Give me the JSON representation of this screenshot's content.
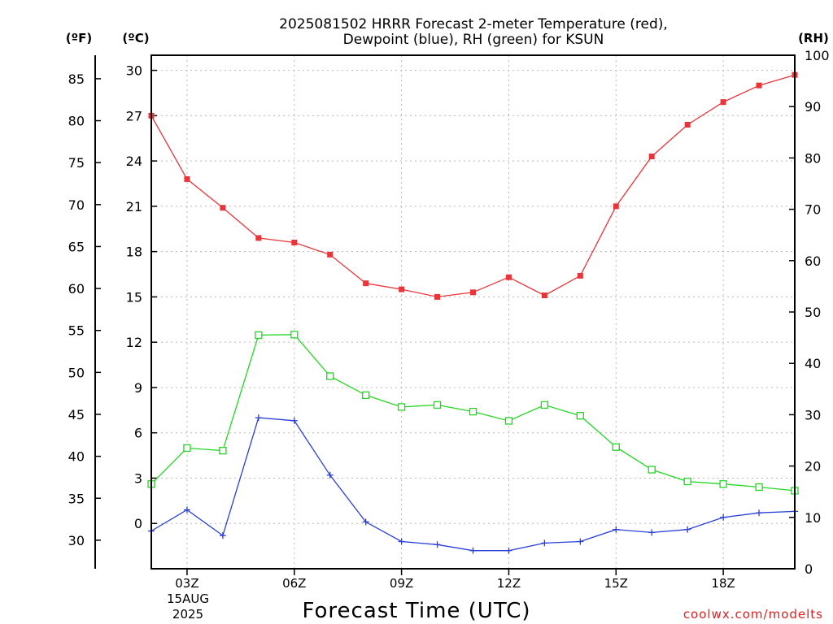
{
  "chart_data": {
    "type": "line",
    "title_line1": "2025081502 HRRR Forecast 2-meter Temperature (red),",
    "title_line2": "Dewpoint (blue), RH (green) for KSUN",
    "xlabel": "Forecast Time (UTC)",
    "credit": "coolwx.com/modelts",
    "left_outer_unit": "(ºF)",
    "left_inner_unit": "(ºC)",
    "right_unit": "(RH)",
    "x_tick_labels": [
      "03Z",
      "06Z",
      "09Z",
      "12Z",
      "15Z",
      "18Z"
    ],
    "x_tick_hours": [
      3,
      6,
      9,
      12,
      15,
      18
    ],
    "x_date_line1": "15AUG",
    "x_date_line2": "2025",
    "xlim_hours": [
      2,
      20
    ],
    "ylim_celsius": [
      -3,
      31
    ],
    "yticks_celsius": [
      0,
      3,
      6,
      9,
      12,
      15,
      18,
      21,
      24,
      27,
      30
    ],
    "yticks_fahrenheit": [
      30,
      35,
      40,
      45,
      50,
      55,
      60,
      65,
      70,
      75,
      80,
      85
    ],
    "ylim_rh": [
      0,
      100
    ],
    "yticks_rh": [
      0,
      10,
      20,
      30,
      40,
      50,
      60,
      70,
      80,
      90,
      100
    ],
    "grid": true,
    "hours": [
      2,
      3,
      4,
      5,
      6,
      7,
      8,
      9,
      10,
      11,
      12,
      13,
      14,
      15,
      16,
      17,
      18,
      19,
      20
    ],
    "series": [
      {
        "name": "2-meter Temperature",
        "axis": "celsius",
        "color": "#e8353a",
        "marker": "filled-square",
        "values": [
          27.0,
          22.8,
          20.9,
          18.9,
          18.6,
          17.8,
          15.9,
          15.5,
          15.0,
          15.3,
          16.3,
          15.1,
          16.4,
          21.0,
          24.3,
          26.4,
          27.9,
          29.0,
          29.7
        ]
      },
      {
        "name": "Dewpoint",
        "axis": "celsius",
        "color": "#2a3fd8",
        "marker": "plus",
        "values": [
          -0.5,
          0.9,
          -0.8,
          7.0,
          6.8,
          3.2,
          0.1,
          -1.2,
          -1.4,
          -1.8,
          -1.8,
          -1.3,
          -1.2,
          -0.4,
          -0.6,
          -0.4,
          0.4,
          0.7,
          0.8
        ]
      },
      {
        "name": "RH",
        "axis": "rh",
        "color": "#22d622",
        "marker": "open-square",
        "values": [
          16.5,
          23.5,
          23.0,
          45.5,
          45.6,
          37.5,
          33.8,
          31.5,
          31.9,
          30.6,
          28.8,
          31.9,
          29.8,
          23.7,
          19.3,
          17.0,
          16.5,
          15.9,
          15.2
        ]
      }
    ]
  }
}
